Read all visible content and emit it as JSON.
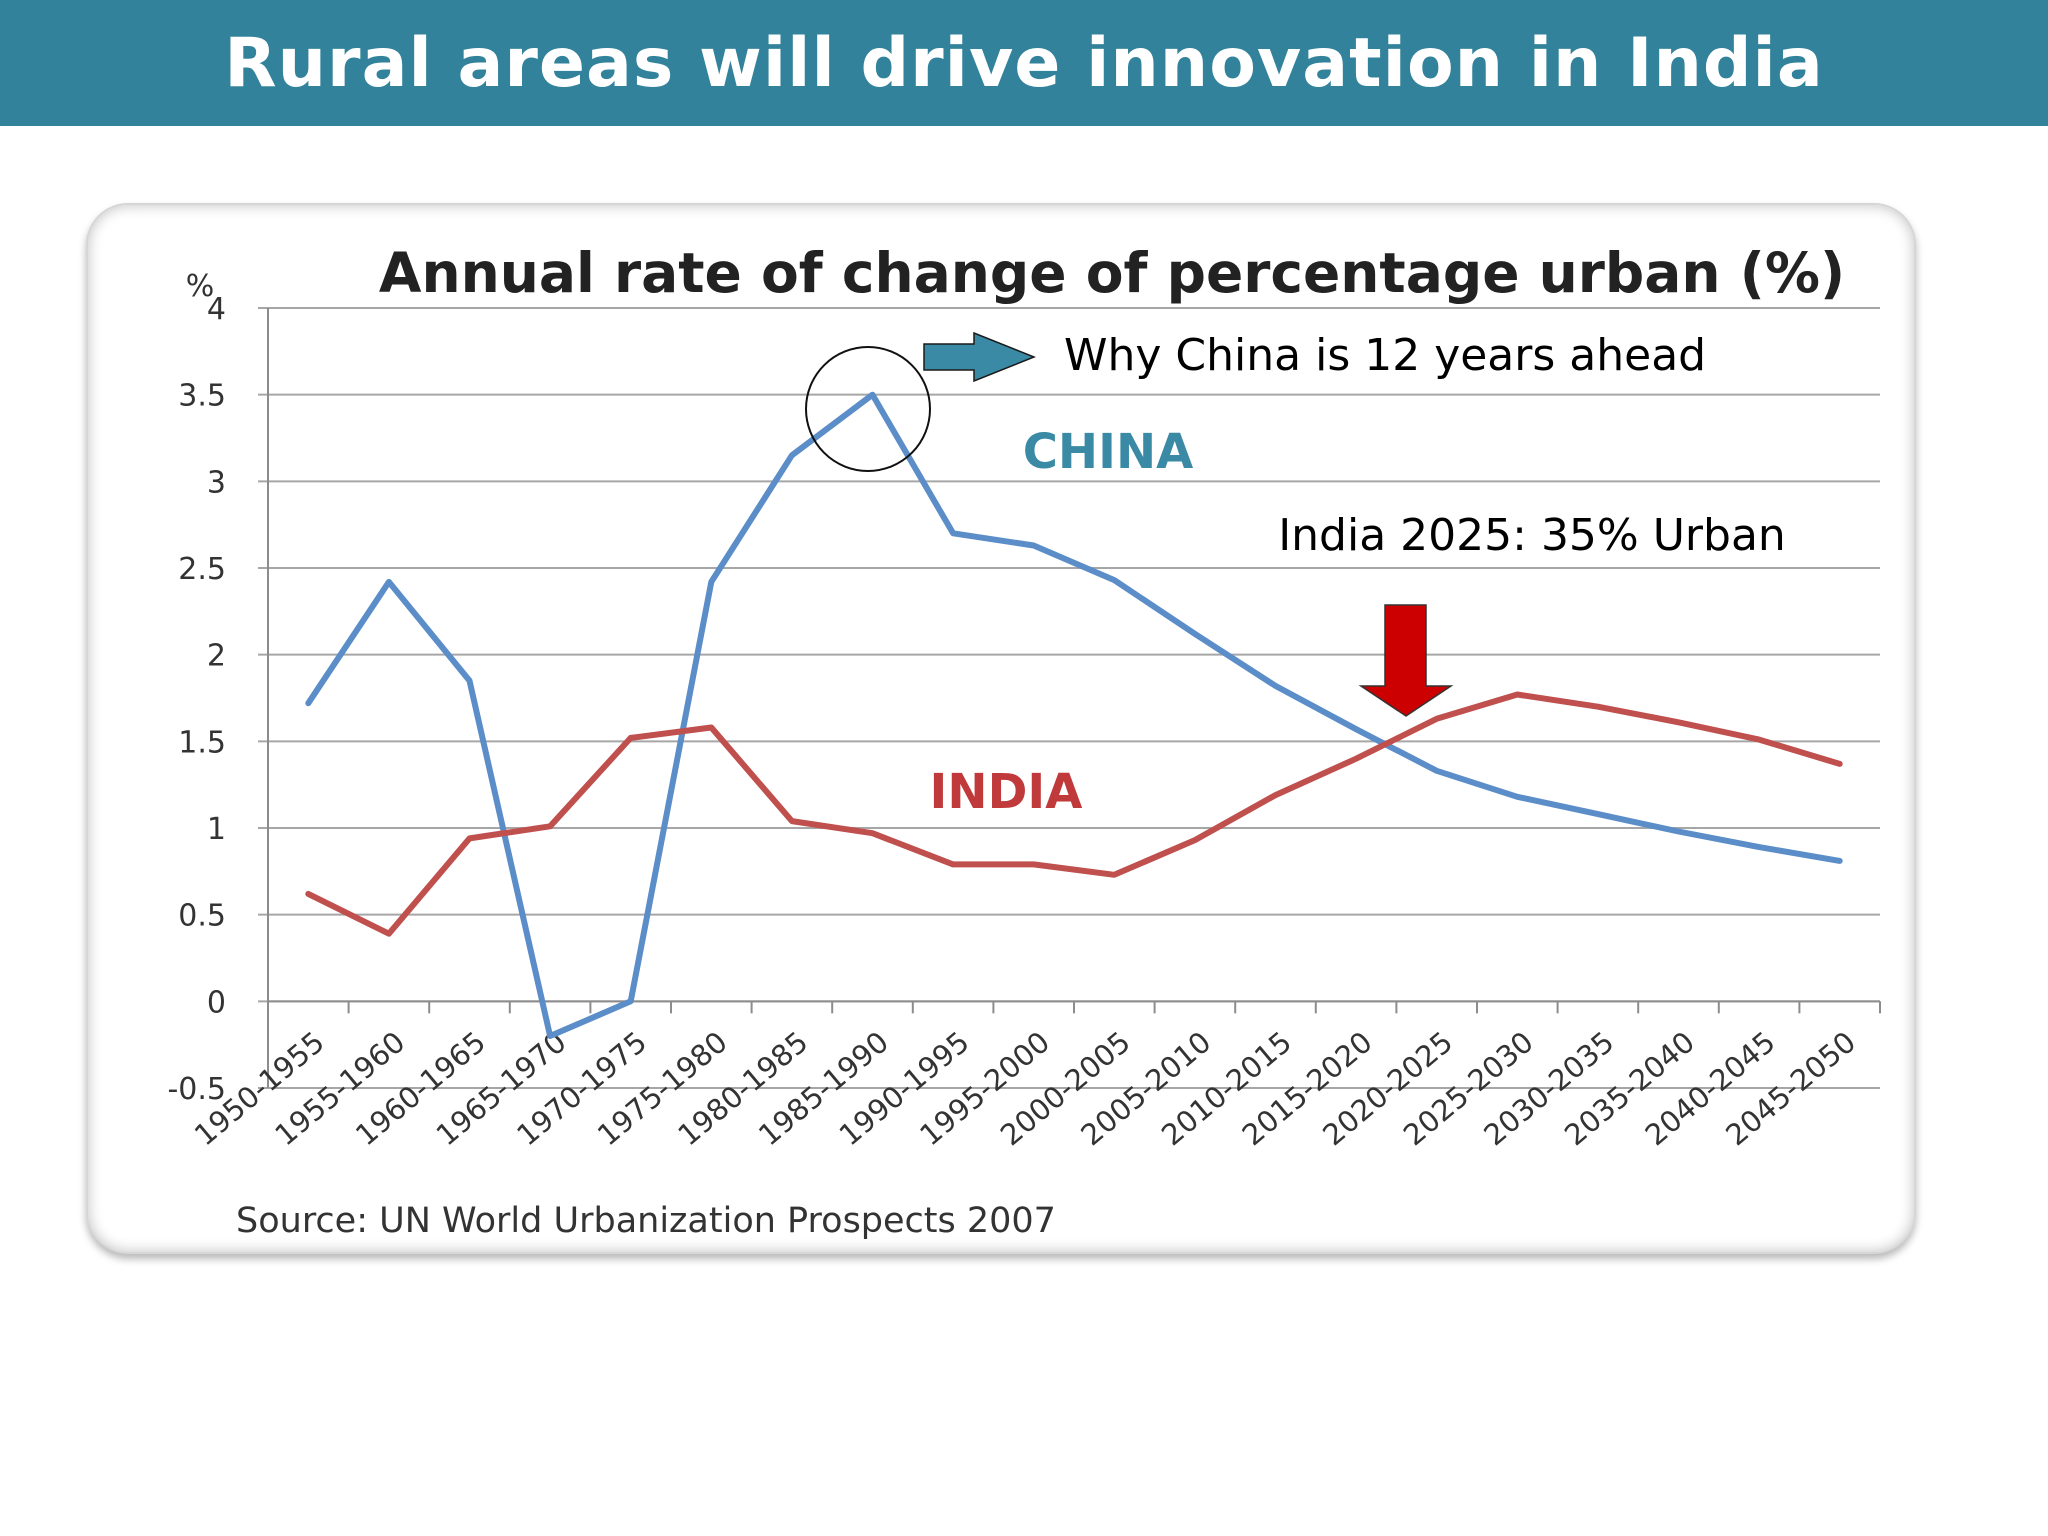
{
  "slide": {
    "title": "Rural areas will drive innovation in India"
  },
  "colors": {
    "header_bg": "#31829a",
    "china": "#5b8dc8",
    "india": "#c0504d",
    "china_label": "#3a8aa5",
    "india_label": "#c0393b",
    "arrow_teal": "#3a8aa5",
    "arrow_red": "#cc0000"
  },
  "chart_data": {
    "type": "line",
    "title": "Annual rate of change of percentage urban (%)",
    "ylabel": "%",
    "ylim": [
      -0.5,
      4
    ],
    "yticks": [
      "-0.5",
      "0",
      "0.5",
      "1",
      "1.5",
      "2",
      "2.5",
      "3",
      "3.5",
      "4"
    ],
    "grid": true,
    "categories": [
      "1950-1955",
      "1955-1960",
      "1960-1965",
      "1965-1970",
      "1970-1975",
      "1975-1980",
      "1980-1985",
      "1985-1990",
      "1990-1995",
      "1995-2000",
      "2000-2005",
      "2005-2010",
      "2010-2015",
      "2015-2020",
      "2020-2025",
      "2025-2030",
      "2030-2035",
      "2035-2040",
      "2040-2045",
      "2045-2050"
    ],
    "series": [
      {
        "name": "CHINA",
        "values": [
          1.72,
          2.42,
          1.85,
          -0.2,
          0.0,
          2.42,
          3.15,
          3.5,
          2.7,
          2.63,
          2.43,
          2.12,
          1.82,
          1.57,
          1.33,
          1.18,
          1.08,
          0.98,
          0.89,
          0.81
        ]
      },
      {
        "name": "INDIA",
        "values": [
          0.62,
          0.39,
          0.94,
          1.01,
          1.52,
          1.58,
          1.04,
          0.97,
          0.79,
          0.79,
          0.73,
          0.93,
          1.19,
          1.4,
          1.63,
          1.77,
          1.7,
          1.61,
          1.51,
          1.37
        ]
      }
    ],
    "annotations": {
      "china_note": "Why China is 12 years ahead",
      "india_note": "India 2025: 35% Urban"
    },
    "source": "Source:  UN World Urbanization Prospects 2007"
  }
}
